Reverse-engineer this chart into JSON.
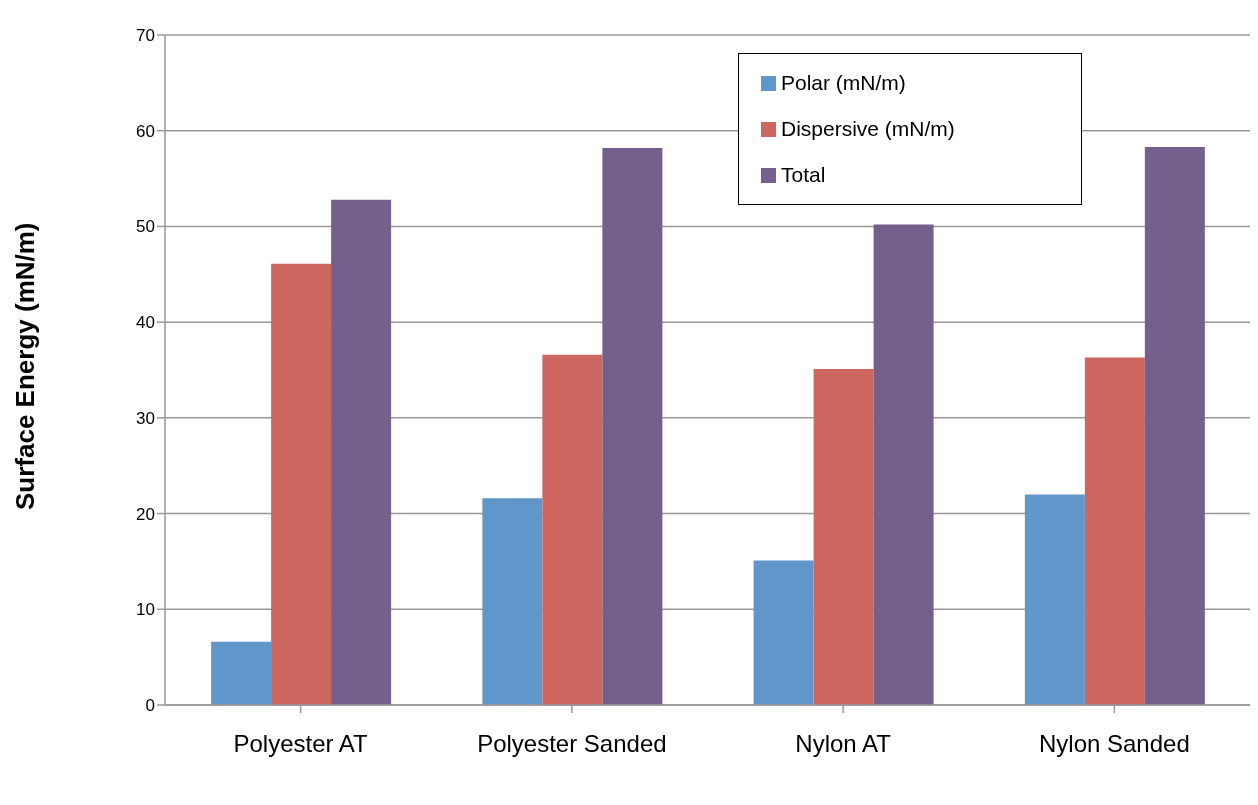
{
  "chart_data": {
    "type": "bar",
    "ylabel": "Surface Energy (mN/m)",
    "categories": [
      "Polyester AT",
      "Polyester Sanded",
      "Nylon AT",
      "Nylon Sanded"
    ],
    "series": [
      {
        "name": "Polar (mN/m)",
        "color": "#6096c9",
        "values": [
          6.6,
          21.6,
          15.1,
          22.0
        ]
      },
      {
        "name": "Dispersive (mN/m)",
        "color": "#cc665e",
        "values": [
          46.1,
          36.6,
          35.1,
          36.3
        ]
      },
      {
        "name": "Total",
        "color": "#755f8c",
        "values": [
          52.8,
          58.2,
          50.2,
          58.3
        ]
      }
    ],
    "ylim": [
      0,
      70
    ],
    "yticks": [
      0,
      10,
      20,
      30,
      40,
      50,
      60,
      70
    ],
    "grid": "y",
    "legend": "top right"
  }
}
